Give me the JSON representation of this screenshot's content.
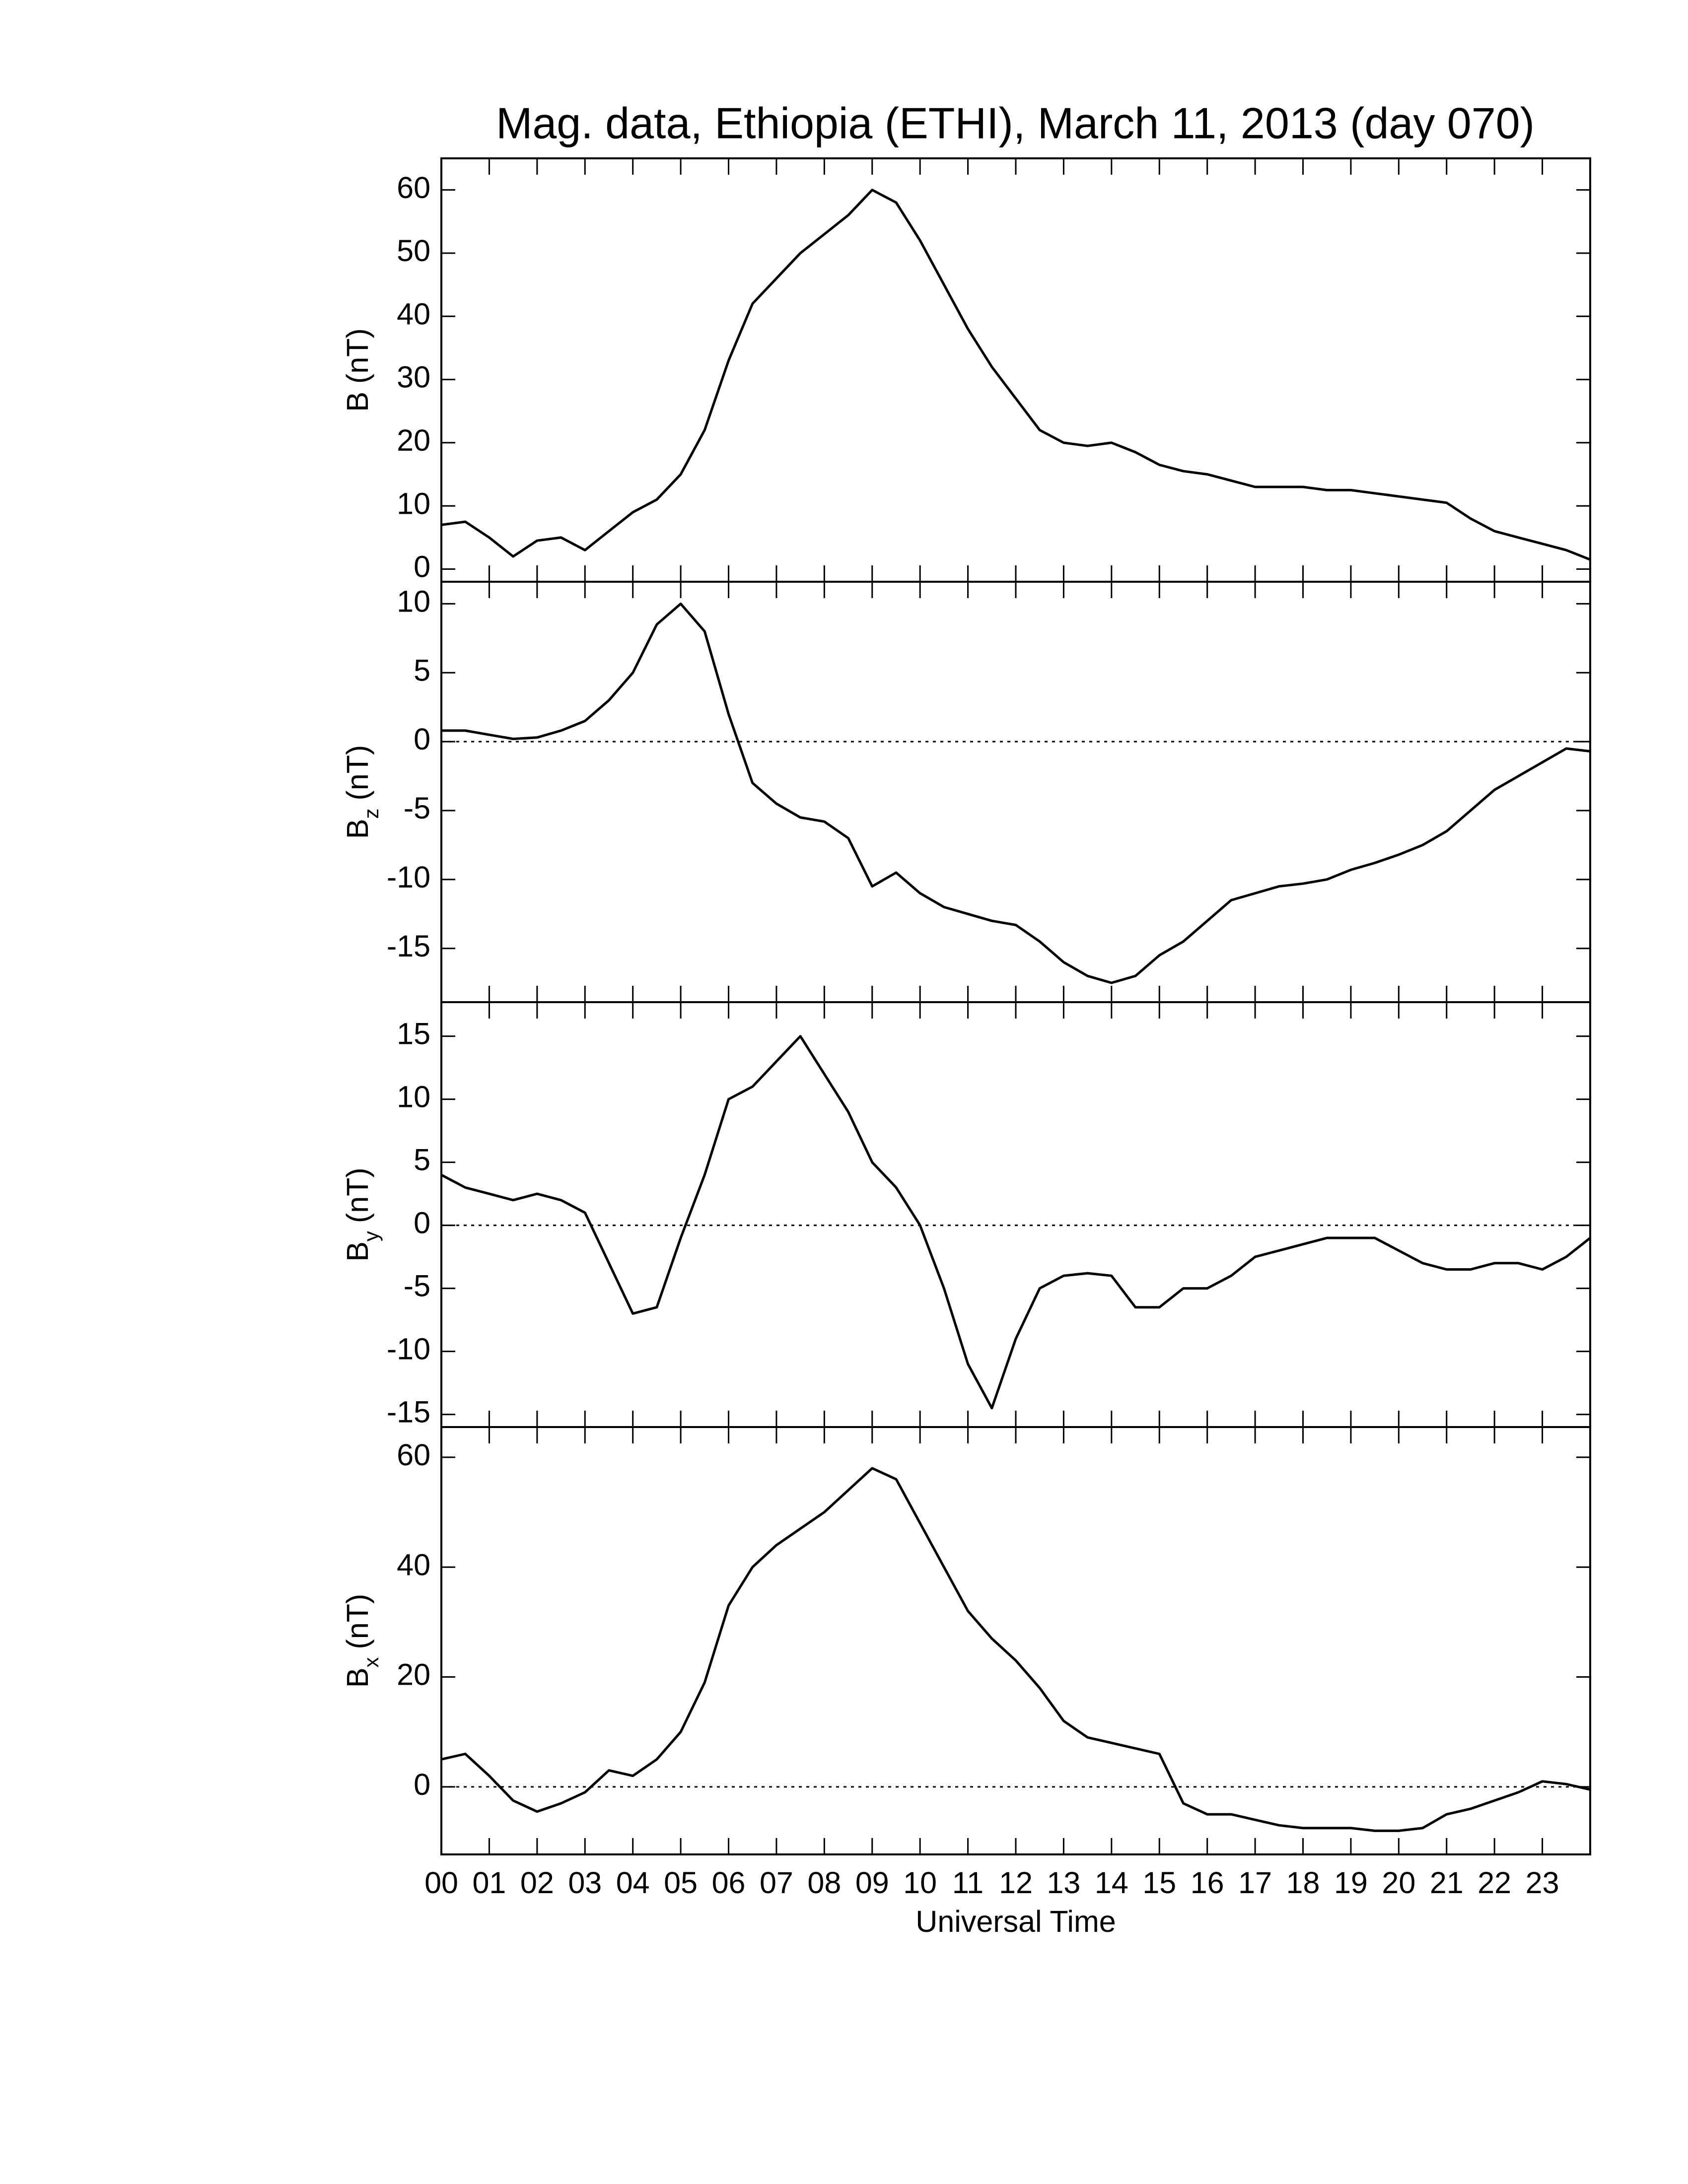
{
  "chart_data": [
    {
      "type": "line",
      "title": "Mag. data, Ethiopia (ETHI), March 11, 2013 (day 070)",
      "ylabel": {
        "text": "B",
        "unit": "(nT)"
      },
      "x": [
        0,
        0.5,
        1,
        1.5,
        2,
        2.5,
        3,
        3.5,
        4,
        4.5,
        5,
        5.5,
        6,
        6.5,
        7,
        7.5,
        8,
        8.5,
        9,
        9.5,
        10,
        10.5,
        11,
        11.5,
        12,
        12.5,
        13,
        13.5,
        14,
        14.5,
        15,
        15.5,
        16,
        16.5,
        17,
        17.5,
        18,
        18.5,
        19,
        19.5,
        20,
        20.5,
        21,
        21.5,
        22,
        22.5,
        23,
        23.5,
        24
      ],
      "values": [
        7,
        7.5,
        5,
        2,
        4.5,
        5,
        3,
        6,
        9,
        11,
        15,
        22,
        33,
        42,
        46,
        50,
        53,
        56,
        60,
        58,
        52,
        45,
        38,
        32,
        27,
        22,
        20,
        19.5,
        20,
        18.5,
        16.5,
        15.5,
        15,
        14,
        13,
        13,
        13,
        12.5,
        12.5,
        12,
        11.5,
        11,
        10.5,
        8,
        6,
        5,
        4,
        3,
        1.5
      ],
      "color": "#000000",
      "xlim": [
        0,
        24
      ],
      "ylim": [
        -2,
        65
      ],
      "yticks": [
        0,
        10,
        20,
        30,
        40,
        50,
        60
      ]
    },
    {
      "type": "line",
      "ylabel": {
        "text": "B",
        "subscript": "z",
        "unit": "(nT)"
      },
      "x": [
        0,
        0.5,
        1,
        1.5,
        2,
        2.5,
        3,
        3.5,
        4,
        4.5,
        5,
        5.5,
        6,
        6.5,
        7,
        7.5,
        8,
        8.5,
        9,
        9.5,
        10,
        10.5,
        11,
        11.5,
        12,
        12.5,
        13,
        13.5,
        14,
        14.5,
        15,
        15.5,
        16,
        16.5,
        17,
        17.5,
        18,
        18.5,
        19,
        19.5,
        20,
        20.5,
        21,
        21.5,
        22,
        22.5,
        23,
        23.5,
        24
      ],
      "values": [
        0.8,
        0.8,
        0.5,
        0.2,
        0.3,
        0.8,
        1.5,
        3,
        5,
        8.5,
        10,
        8,
        2,
        -3,
        -4.5,
        -5.5,
        -5.8,
        -7,
        -10.5,
        -9.5,
        -11,
        -12,
        -12.5,
        -13,
        -13.3,
        -14.5,
        -16,
        -17,
        -17.5,
        -17,
        -15.5,
        -14.5,
        -13,
        -11.5,
        -11,
        -10.5,
        -10.3,
        -10,
        -9.3,
        -8.8,
        -8.2,
        -7.5,
        -6.5,
        -5,
        -3.5,
        -2.5,
        -1.5,
        -0.5,
        -0.7
      ],
      "color": "#000000",
      "xlim": [
        0,
        24
      ],
      "ylim": [
        -18.9,
        11.6
      ],
      "yticks": [
        -15,
        -10,
        -5,
        0,
        5,
        10
      ],
      "hline": 0
    },
    {
      "type": "line",
      "ylabel": {
        "text": "B",
        "subscript": "y",
        "unit": "(nT)"
      },
      "x": [
        0,
        0.5,
        1,
        1.5,
        2,
        2.5,
        3,
        3.5,
        4,
        4.5,
        5,
        5.5,
        6,
        6.5,
        7,
        7.5,
        8,
        8.5,
        9,
        9.5,
        10,
        10.5,
        11,
        11.5,
        12,
        12.5,
        13,
        13.5,
        14,
        14.5,
        15,
        15.5,
        16,
        16.5,
        17,
        17.5,
        18,
        18.5,
        19,
        19.5,
        20,
        20.5,
        21,
        21.5,
        22,
        22.5,
        23,
        23.5,
        24
      ],
      "values": [
        4,
        3,
        2.5,
        2,
        2.5,
        2,
        1,
        -3,
        -7,
        -6.5,
        -1,
        4,
        10,
        11,
        13,
        15,
        12,
        9,
        5,
        3,
        0,
        -5,
        -11,
        -14.5,
        -9,
        -5,
        -4,
        -3.8,
        -4,
        -6.5,
        -6.5,
        -5,
        -5,
        -4,
        -2.5,
        -2,
        -1.5,
        -1,
        -1,
        -1,
        -2,
        -3,
        -3.5,
        -3.5,
        -3,
        -3,
        -3.5,
        -2.5,
        -1
      ],
      "color": "#000000",
      "xlim": [
        0,
        24
      ],
      "ylim": [
        -16,
        17.7
      ],
      "yticks": [
        -15,
        -10,
        -5,
        0,
        5,
        10,
        15
      ],
      "hline": 0
    },
    {
      "type": "line",
      "ylabel": {
        "text": "B",
        "subscript": "x",
        "unit": "(nT)"
      },
      "xlabel": "Universal Time",
      "x": [
        0,
        0.5,
        1,
        1.5,
        2,
        2.5,
        3,
        3.5,
        4,
        4.5,
        5,
        5.5,
        6,
        6.5,
        7,
        7.5,
        8,
        8.5,
        9,
        9.5,
        10,
        10.5,
        11,
        11.5,
        12,
        12.5,
        13,
        13.5,
        14,
        14.5,
        15,
        15.5,
        16,
        16.5,
        17,
        17.5,
        18,
        18.5,
        19,
        19.5,
        20,
        20.5,
        21,
        21.5,
        22,
        22.5,
        23,
        23.5,
        24
      ],
      "values": [
        5,
        6,
        2,
        -2.5,
        -4.5,
        -3,
        -1,
        3,
        2,
        5,
        10,
        19,
        33,
        40,
        44,
        47,
        50,
        54,
        58,
        56,
        48,
        40,
        32,
        27,
        23,
        18,
        12,
        9,
        8,
        7,
        6,
        -3,
        -5,
        -5,
        -6,
        -7,
        -7.5,
        -7.5,
        -7.5,
        -8,
        -8,
        -7.5,
        -5,
        -4,
        -2.5,
        -1,
        1,
        0.5,
        -0.5
      ],
      "color": "#000000",
      "xlim": [
        0,
        24
      ],
      "ylim": [
        -12.3,
        65.5
      ],
      "yticks": [
        0,
        20,
        40,
        60
      ],
      "hline": 0,
      "xticks": [
        {
          "value": 0,
          "label": "00"
        },
        {
          "value": 1,
          "label": "01"
        },
        {
          "value": 2,
          "label": "02"
        },
        {
          "value": 3,
          "label": "03"
        },
        {
          "value": 4,
          "label": "04"
        },
        {
          "value": 5,
          "label": "05"
        },
        {
          "value": 6,
          "label": "06"
        },
        {
          "value": 7,
          "label": "07"
        },
        {
          "value": 8,
          "label": "08"
        },
        {
          "value": 9,
          "label": "09"
        },
        10,
        11,
        12,
        13,
        14,
        15,
        16,
        17,
        18,
        19,
        20,
        21,
        22,
        23
      ]
    }
  ]
}
